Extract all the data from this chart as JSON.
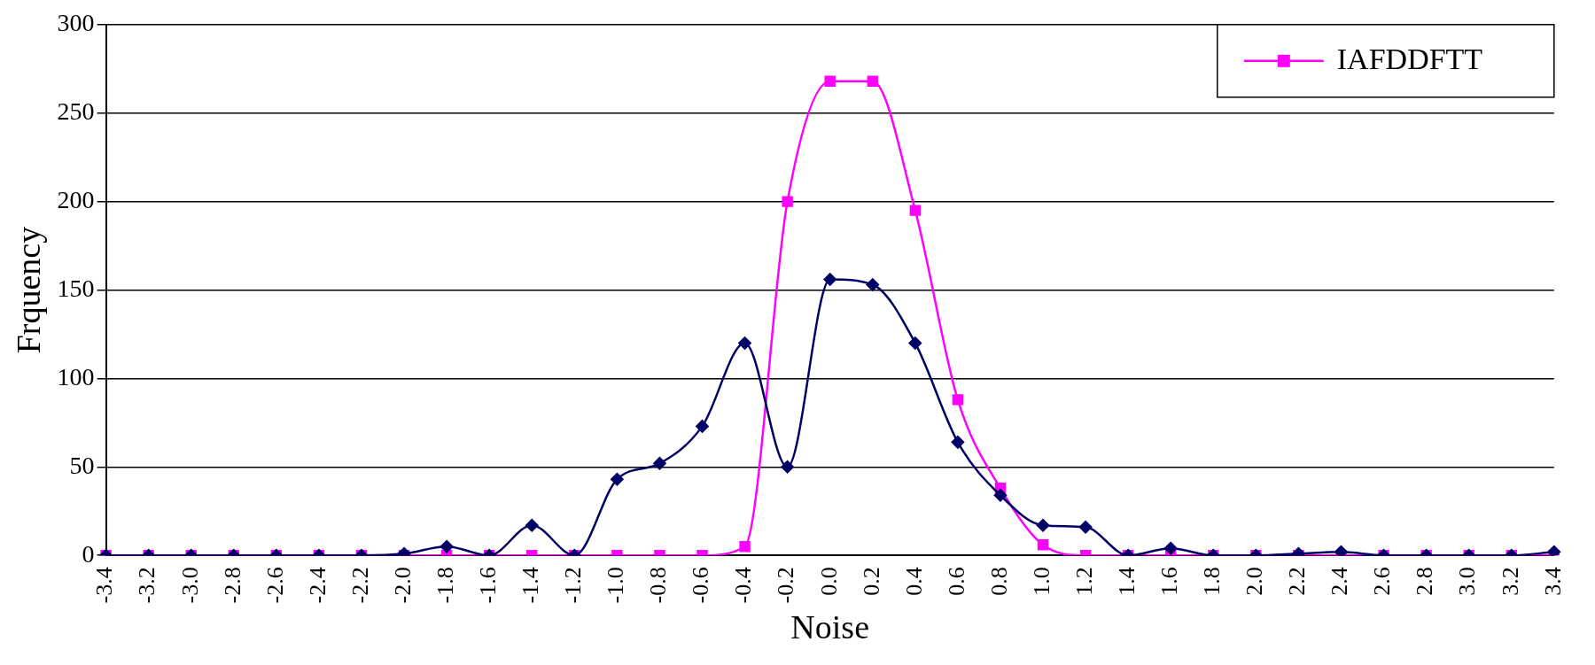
{
  "chart_data": {
    "type": "line",
    "xlabel": "Noise",
    "ylabel": "Frquency",
    "categories": [
      "-3.4",
      "-3.2",
      "-3.0",
      "-2.8",
      "-2.6",
      "-2.4",
      "-2.2",
      "-2.0",
      "-1.8",
      "-1.6",
      "-1.4",
      "-1.2",
      "-1.0",
      "-0.8",
      "-0.6",
      "-0.4",
      "-0.2",
      "0.0",
      "0.2",
      "0.4",
      "0.6",
      "0.8",
      "1.0",
      "1.2",
      "1.4",
      "1.6",
      "1.8",
      "2.0",
      "2.2",
      "2.4",
      "2.6",
      "2.8",
      "3.0",
      "3.2",
      "3.4"
    ],
    "series": [
      {
        "color": "#000066",
        "marker": "diamond",
        "values": [
          0,
          0,
          0,
          0,
          0,
          0,
          0,
          1,
          5,
          0,
          17,
          0,
          43,
          52,
          73,
          120,
          50,
          156,
          153,
          120,
          64,
          34,
          17,
          16,
          0,
          4,
          0,
          0,
          1,
          2,
          0,
          0,
          0,
          0,
          2
        ]
      },
      {
        "name": "IAFDDFTT",
        "color": "#ff00ff",
        "marker": "square",
        "values": [
          0,
          0,
          0,
          0,
          0,
          0,
          0,
          0,
          0,
          0,
          0,
          0,
          0,
          0,
          0,
          5,
          200,
          268,
          268,
          195,
          88,
          38,
          6,
          0,
          0,
          0,
          0,
          0,
          0,
          0,
          0,
          0,
          0,
          0,
          0
        ]
      }
    ],
    "ylim": [
      0,
      300
    ],
    "yticks": [
      0,
      50,
      100,
      150,
      200,
      250,
      300
    ],
    "grid": "y",
    "legend": "top right"
  }
}
